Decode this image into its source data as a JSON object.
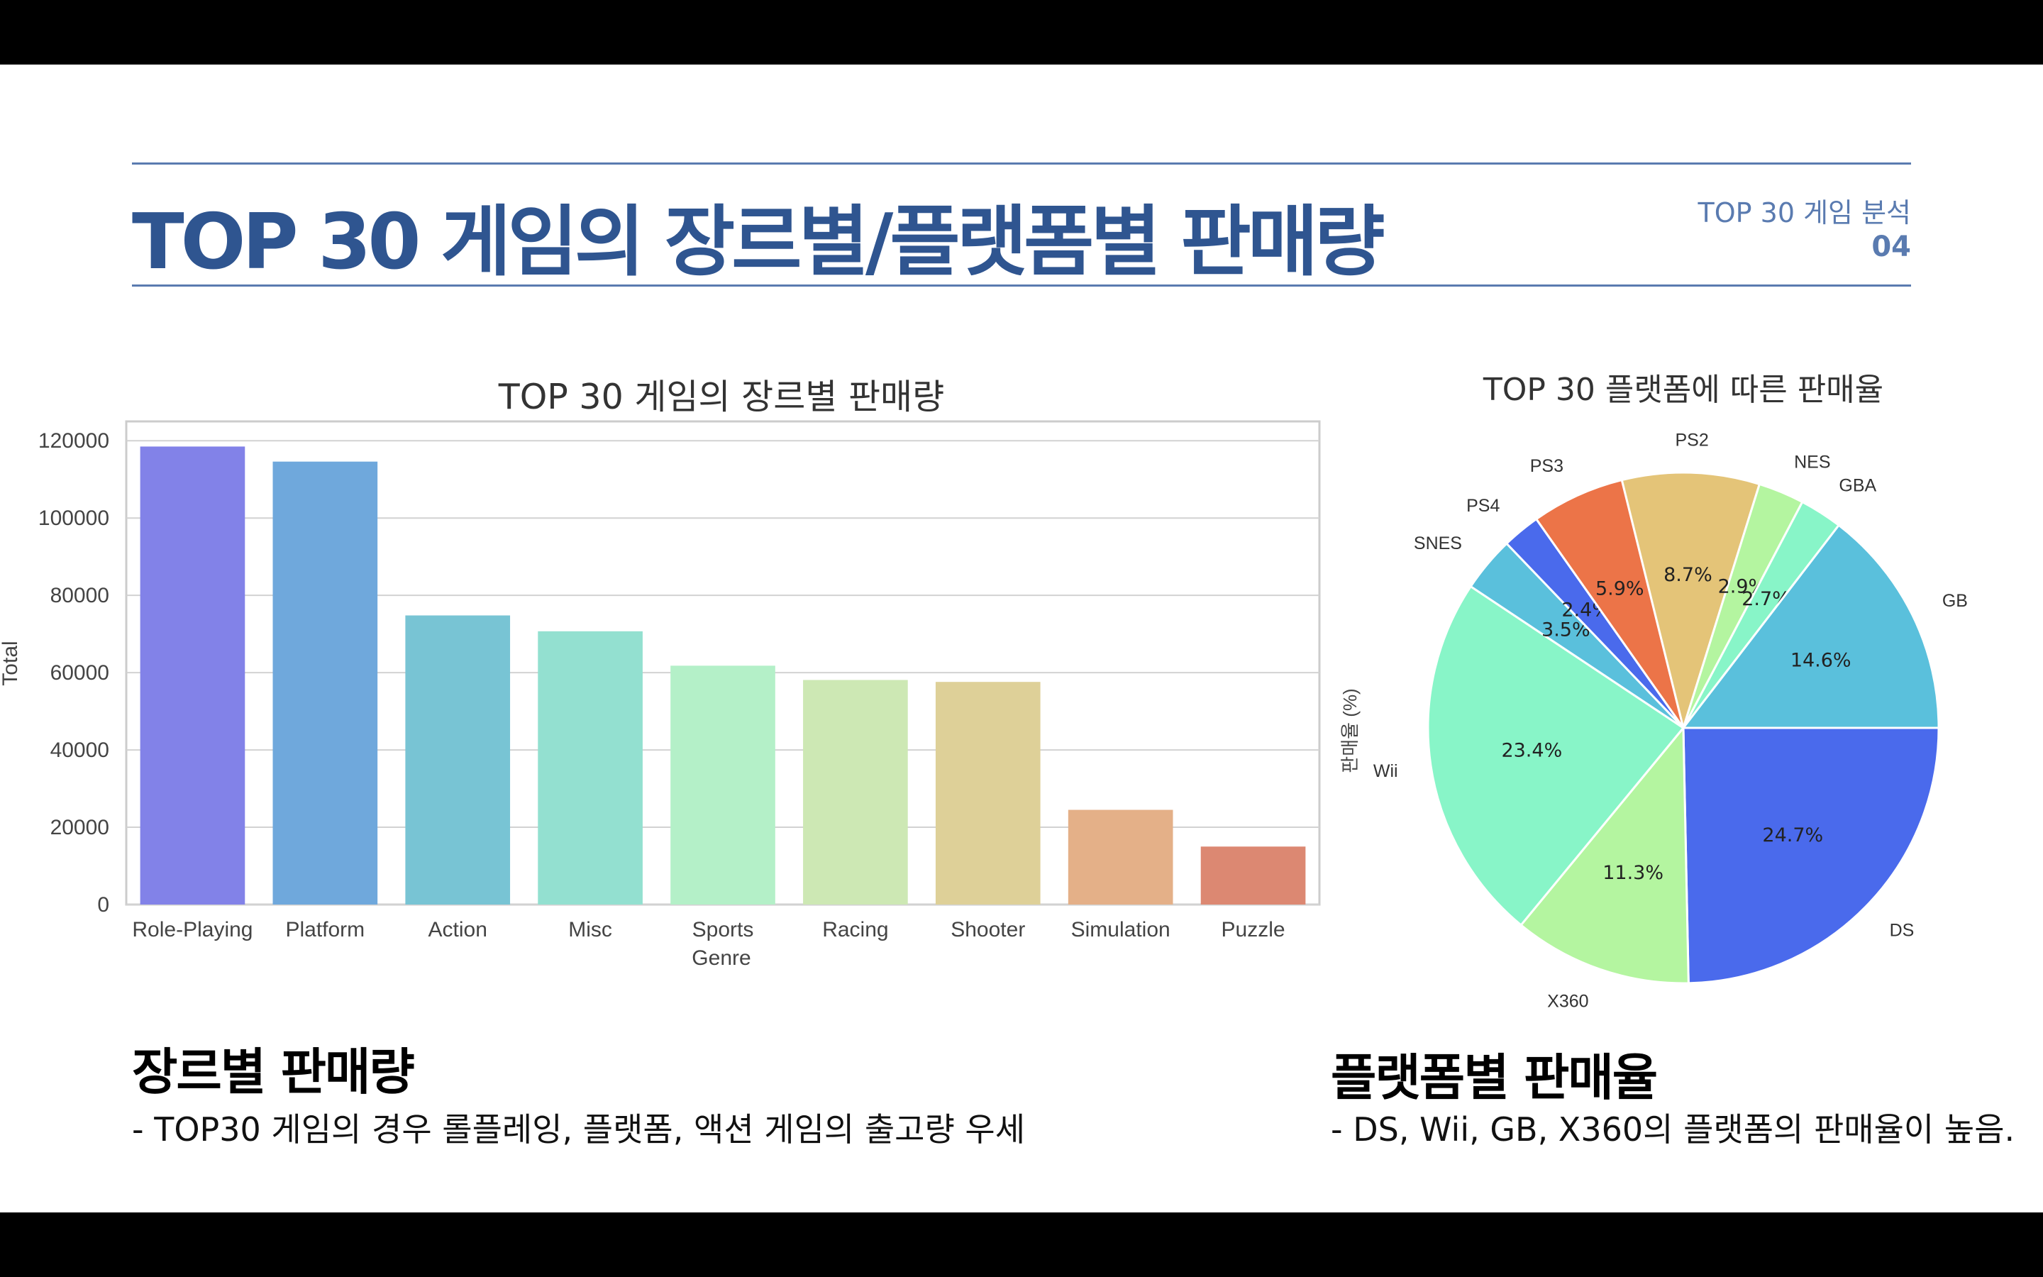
{
  "header": {
    "title": "TOP 30 게임의 장르별/플랫폼별 판매량",
    "subtitle": "TOP 30 게임 분석",
    "page_number": "04"
  },
  "chart_data": [
    {
      "type": "bar",
      "title": "TOP 30 게임의 장르별 판매량",
      "xlabel": "Genre",
      "ylabel": "Total",
      "categories": [
        "Role-Playing",
        "Platform",
        "Action",
        "Misc",
        "Sports",
        "Racing",
        "Shooter",
        "Simulation",
        "Puzzle"
      ],
      "values": [
        118500,
        114600,
        74800,
        70700,
        61800,
        58100,
        57600,
        24500,
        15000
      ],
      "colors": [
        "#8282e8",
        "#6fa8dc",
        "#78c4d4",
        "#93e0d0",
        "#b4f0c8",
        "#cde8b4",
        "#ded098",
        "#e4b088",
        "#dc8872"
      ],
      "ylim": [
        0,
        125000
      ],
      "yticks": [
        0,
        20000,
        40000,
        60000,
        80000,
        100000,
        120000
      ],
      "grid": true
    },
    {
      "type": "pie",
      "title": "TOP 30 플랫폼에 따른 판매율",
      "ylabel": "판매율 (%)",
      "labels": [
        "DS",
        "X360",
        "Wii",
        "SNES",
        "PS4",
        "PS3",
        "PS2",
        "NES",
        "GBA",
        "GB"
      ],
      "values": [
        24.7,
        11.3,
        23.4,
        3.5,
        2.4,
        5.9,
        8.7,
        2.9,
        2.7,
        14.6
      ],
      "pct_labels": [
        "24.7%",
        "11.3%",
        "23.4%",
        "3.5%",
        "2.4%",
        "5.9%",
        "8.7%",
        "2.9%",
        "2.7%",
        "14.6%"
      ],
      "colors": [
        "#4a6aec",
        "#b4f5a0",
        "#88f5c8",
        "#5ac0dc",
        "#4a6aec",
        "#ec7448",
        "#e4c478",
        "#b4f5a0",
        "#88f5c8",
        "#5ac0dc"
      ]
    }
  ],
  "sections": {
    "genre_title": "장르별 판매량",
    "genre_desc": "- TOP30 게임의 경우 롤플레잉, 플랫폼, 액션 게임의 출고량 우세",
    "platform_title": "플랫폼별 판매율",
    "platform_desc": "- DS, Wii, GB, X360의 플랫폼의 판매율이 높음."
  }
}
